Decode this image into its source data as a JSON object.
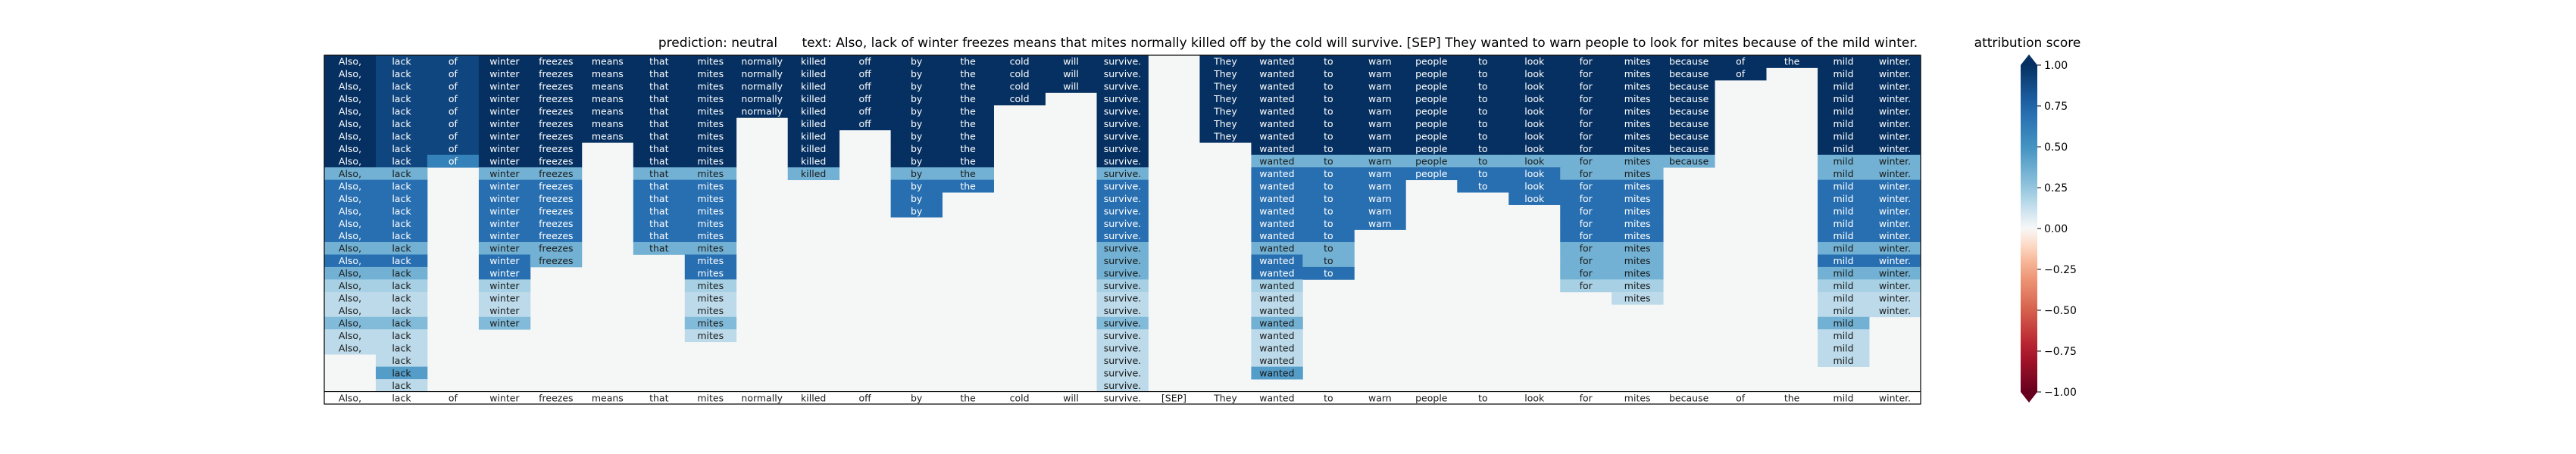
{
  "chart_data": {
    "type": "heatmap",
    "title": {
      "prediction_label": "prediction:",
      "prediction_value": "neutral",
      "text_label": "text:",
      "text_value": "Also, lack of winter freezes means that mites normally killed off by the cold will survive. [SEP] They wanted to warn people to look for mites because of the mild winter."
    },
    "tokens": [
      "Also,",
      "lack",
      "of",
      "winter",
      "freezes",
      "means",
      "that",
      "mites",
      "normally",
      "killed",
      "off",
      "by",
      "the",
      "cold",
      "will",
      "survive.",
      "[SEP]",
      "They",
      "wanted",
      "to",
      "warn",
      "people",
      "to",
      "look",
      "for",
      "mites",
      "because",
      "of",
      "the",
      "mild",
      "winter."
    ],
    "colorbar": {
      "label": "attribution score",
      "range": [
        -1.0,
        1.0
      ],
      "ticks": [
        "1.00",
        "0.75",
        "0.50",
        "0.25",
        "0.00",
        "−0.25",
        "−0.50",
        "−0.75",
        "−1.00"
      ]
    },
    "rows": [
      [
        1,
        0.9,
        0.9,
        1,
        1,
        1,
        1,
        1,
        1,
        1,
        1,
        1,
        1,
        1,
        1,
        1,
        null,
        1,
        1,
        1,
        1,
        1,
        1,
        1,
        1,
        1,
        1,
        1,
        1,
        1,
        1
      ],
      [
        1,
        0.9,
        0.9,
        1,
        1,
        1,
        1,
        1,
        1,
        1,
        1,
        1,
        1,
        1,
        1,
        1,
        null,
        1,
        1,
        1,
        1,
        1,
        1,
        1,
        1,
        1,
        1,
        1,
        null,
        1,
        1
      ],
      [
        1,
        0.9,
        0.9,
        1,
        1,
        1,
        1,
        1,
        1,
        1,
        1,
        1,
        1,
        1,
        1,
        1,
        null,
        1,
        1,
        1,
        1,
        1,
        1,
        1,
        1,
        1,
        1,
        null,
        null,
        1,
        1
      ],
      [
        1,
        0.9,
        0.9,
        1,
        1,
        1,
        1,
        1,
        1,
        1,
        1,
        1,
        1,
        1,
        null,
        1,
        null,
        1,
        1,
        1,
        1,
        1,
        1,
        1,
        1,
        1,
        1,
        null,
        null,
        1,
        1
      ],
      [
        1,
        0.9,
        0.9,
        1,
        1,
        1,
        1,
        1,
        1,
        1,
        1,
        1,
        1,
        null,
        null,
        1,
        null,
        1,
        1,
        1,
        1,
        1,
        1,
        1,
        1,
        1,
        1,
        null,
        null,
        1,
        1
      ],
      [
        1,
        0.9,
        0.9,
        1,
        1,
        1,
        1,
        1,
        null,
        1,
        1,
        1,
        1,
        null,
        null,
        1,
        null,
        1,
        1,
        1,
        1,
        1,
        1,
        1,
        1,
        1,
        1,
        null,
        null,
        1,
        1
      ],
      [
        1,
        0.9,
        0.9,
        1,
        1,
        1,
        1,
        1,
        null,
        1,
        null,
        1,
        1,
        null,
        null,
        1,
        null,
        1,
        1,
        1,
        1,
        1,
        1,
        1,
        1,
        1,
        1,
        null,
        null,
        1,
        1
      ],
      [
        1,
        0.9,
        0.9,
        1,
        1,
        null,
        1,
        1,
        null,
        1,
        null,
        1,
        1,
        null,
        null,
        1,
        null,
        null,
        1,
        1,
        1,
        1,
        1,
        1,
        1,
        1,
        1,
        null,
        null,
        1,
        1
      ],
      [
        1,
        0.9,
        0.6,
        1,
        1,
        null,
        1,
        1,
        null,
        1,
        null,
        1,
        1,
        null,
        null,
        1,
        null,
        null,
        0.35,
        0.35,
        0.35,
        0.35,
        0.35,
        0.35,
        0.35,
        0.35,
        0.35,
        null,
        null,
        0.35,
        0.35
      ],
      [
        0.35,
        0.35,
        null,
        0.35,
        0.35,
        null,
        0.35,
        0.35,
        null,
        0.35,
        null,
        0.35,
        0.35,
        null,
        null,
        0.35,
        null,
        null,
        0.7,
        0.7,
        0.7,
        0.7,
        0.7,
        0.7,
        0.35,
        0.35,
        null,
        null,
        null,
        0.35,
        0.35
      ],
      [
        0.7,
        0.7,
        null,
        0.7,
        0.7,
        null,
        0.7,
        0.7,
        null,
        null,
        null,
        0.7,
        0.7,
        null,
        null,
        0.7,
        null,
        null,
        0.7,
        0.7,
        0.7,
        null,
        0.7,
        0.7,
        0.7,
        0.7,
        null,
        null,
        null,
        0.7,
        0.7
      ],
      [
        0.7,
        0.7,
        null,
        0.7,
        0.7,
        null,
        0.7,
        0.7,
        null,
        null,
        null,
        0.7,
        null,
        null,
        null,
        0.7,
        null,
        null,
        0.7,
        0.7,
        0.7,
        null,
        null,
        0.7,
        0.7,
        0.7,
        null,
        null,
        null,
        0.7,
        0.7
      ],
      [
        0.7,
        0.7,
        null,
        0.7,
        0.7,
        null,
        0.7,
        0.7,
        null,
        null,
        null,
        0.7,
        null,
        null,
        null,
        0.7,
        null,
        null,
        0.7,
        0.7,
        0.7,
        null,
        null,
        null,
        0.7,
        0.7,
        null,
        null,
        null,
        0.7,
        0.7
      ],
      [
        0.7,
        0.7,
        null,
        0.7,
        0.7,
        null,
        0.7,
        0.7,
        null,
        null,
        null,
        null,
        null,
        null,
        null,
        0.7,
        null,
        null,
        0.7,
        0.7,
        0.7,
        null,
        null,
        null,
        0.7,
        0.7,
        null,
        null,
        null,
        0.7,
        0.7
      ],
      [
        0.7,
        0.7,
        null,
        0.7,
        0.7,
        null,
        0.7,
        0.7,
        null,
        null,
        null,
        null,
        null,
        null,
        null,
        0.7,
        null,
        null,
        0.7,
        0.7,
        null,
        null,
        null,
        null,
        0.7,
        0.7,
        null,
        null,
        null,
        0.7,
        0.7
      ],
      [
        0.35,
        0.35,
        null,
        0.35,
        0.35,
        null,
        0.35,
        0.35,
        null,
        null,
        null,
        null,
        null,
        null,
        null,
        0.35,
        null,
        null,
        0.35,
        0.35,
        null,
        null,
        null,
        null,
        0.35,
        0.35,
        null,
        null,
        null,
        0.35,
        0.35
      ],
      [
        0.7,
        0.7,
        null,
        0.7,
        0.35,
        null,
        null,
        0.7,
        null,
        null,
        null,
        null,
        null,
        null,
        null,
        0.35,
        null,
        null,
        0.7,
        0.35,
        null,
        null,
        null,
        null,
        0.35,
        0.35,
        null,
        null,
        null,
        0.7,
        0.7
      ],
      [
        0.35,
        0.35,
        null,
        0.7,
        null,
        null,
        null,
        0.7,
        null,
        null,
        null,
        null,
        null,
        null,
        null,
        0.35,
        null,
        null,
        0.7,
        0.7,
        null,
        null,
        null,
        null,
        0.35,
        0.35,
        null,
        null,
        null,
        0.35,
        0.35
      ],
      [
        0.2,
        0.2,
        null,
        0.2,
        null,
        null,
        null,
        0.2,
        null,
        null,
        null,
        null,
        null,
        null,
        null,
        0.2,
        null,
        null,
        0.2,
        null,
        null,
        null,
        null,
        null,
        0.2,
        0.2,
        null,
        null,
        null,
        0.2,
        0.2
      ],
      [
        0.15,
        0.15,
        null,
        0.15,
        null,
        null,
        null,
        0.15,
        null,
        null,
        null,
        null,
        null,
        null,
        null,
        0.15,
        null,
        null,
        0.15,
        null,
        null,
        null,
        null,
        null,
        null,
        0.15,
        null,
        null,
        null,
        0.15,
        0.15
      ],
      [
        0.15,
        0.15,
        null,
        0.15,
        null,
        null,
        null,
        0.15,
        null,
        null,
        null,
        null,
        null,
        null,
        null,
        0.15,
        null,
        null,
        0.15,
        null,
        null,
        null,
        null,
        null,
        null,
        null,
        null,
        null,
        null,
        0.15,
        0.15
      ],
      [
        0.3,
        0.3,
        null,
        0.3,
        null,
        null,
        null,
        0.3,
        null,
        null,
        null,
        null,
        null,
        null,
        null,
        0.3,
        null,
        null,
        0.35,
        null,
        null,
        null,
        null,
        null,
        null,
        null,
        null,
        null,
        null,
        0.35,
        null
      ],
      [
        0.15,
        0.15,
        null,
        null,
        null,
        null,
        null,
        0.15,
        null,
        null,
        null,
        null,
        null,
        null,
        null,
        0.15,
        null,
        null,
        0.15,
        null,
        null,
        null,
        null,
        null,
        null,
        null,
        null,
        null,
        null,
        0.15,
        null
      ],
      [
        0.15,
        0.15,
        null,
        null,
        null,
        null,
        null,
        null,
        null,
        null,
        null,
        null,
        null,
        null,
        null,
        0.15,
        null,
        null,
        0.15,
        null,
        null,
        null,
        null,
        null,
        null,
        null,
        null,
        null,
        null,
        0.15,
        null
      ],
      [
        null,
        0.15,
        null,
        null,
        null,
        null,
        null,
        null,
        null,
        null,
        null,
        null,
        null,
        null,
        null,
        0.15,
        null,
        null,
        0.15,
        null,
        null,
        null,
        null,
        null,
        null,
        null,
        null,
        null,
        null,
        0.15,
        null
      ],
      [
        null,
        0.45,
        null,
        null,
        null,
        null,
        null,
        null,
        null,
        null,
        null,
        null,
        null,
        null,
        null,
        0.15,
        null,
        null,
        0.45,
        null,
        null,
        null,
        null,
        null,
        null,
        null,
        null,
        null,
        null,
        null,
        null
      ],
      [
        null,
        0.15,
        null,
        null,
        null,
        null,
        null,
        null,
        null,
        null,
        null,
        null,
        null,
        null,
        null,
        0.15,
        null,
        null,
        null,
        null,
        null,
        null,
        null,
        null,
        null,
        null,
        null,
        null,
        null,
        null,
        null
      ],
      [
        0.0,
        0.0,
        0.0,
        0.0,
        0.0,
        0.0,
        0.0,
        0.0,
        0.0,
        0.0,
        0.0,
        0.0,
        0.0,
        0.0,
        0.0,
        0.0,
        0.0,
        0.0,
        0.0,
        0.0,
        0.0,
        0.0,
        0.0,
        0.0,
        0.0,
        0.0,
        0.0,
        0.0,
        0.0,
        0.0,
        0.0
      ]
    ]
  }
}
